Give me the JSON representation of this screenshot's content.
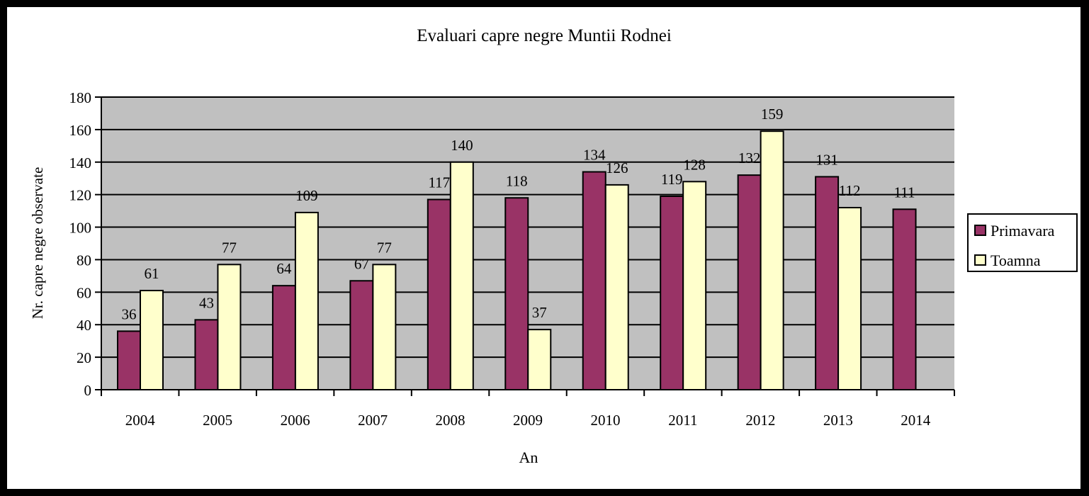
{
  "chart_data": {
    "type": "bar",
    "title": "Evaluari capre negre Muntii Rodnei",
    "xlabel": "An",
    "ylabel": "Nr. capre negre observate",
    "ylim": [
      0,
      180
    ],
    "yticks": [
      0,
      20,
      40,
      60,
      80,
      100,
      120,
      140,
      160,
      180
    ],
    "grid": true,
    "legend_position": "right",
    "categories": [
      "2004",
      "2005",
      "2006",
      "2007",
      "2008",
      "2009",
      "2010",
      "2011",
      "2012",
      "2013",
      "2014"
    ],
    "series": [
      {
        "name": "Primavara",
        "color": "#993366",
        "values": [
          36,
          43,
          64,
          67,
          117,
          118,
          134,
          119,
          132,
          131,
          111
        ]
      },
      {
        "name": "Toamna",
        "color": "#FFFFCC",
        "values": [
          61,
          77,
          109,
          77,
          140,
          37,
          126,
          128,
          159,
          112,
          null
        ]
      }
    ],
    "plot_background": "#C0C0C0"
  }
}
